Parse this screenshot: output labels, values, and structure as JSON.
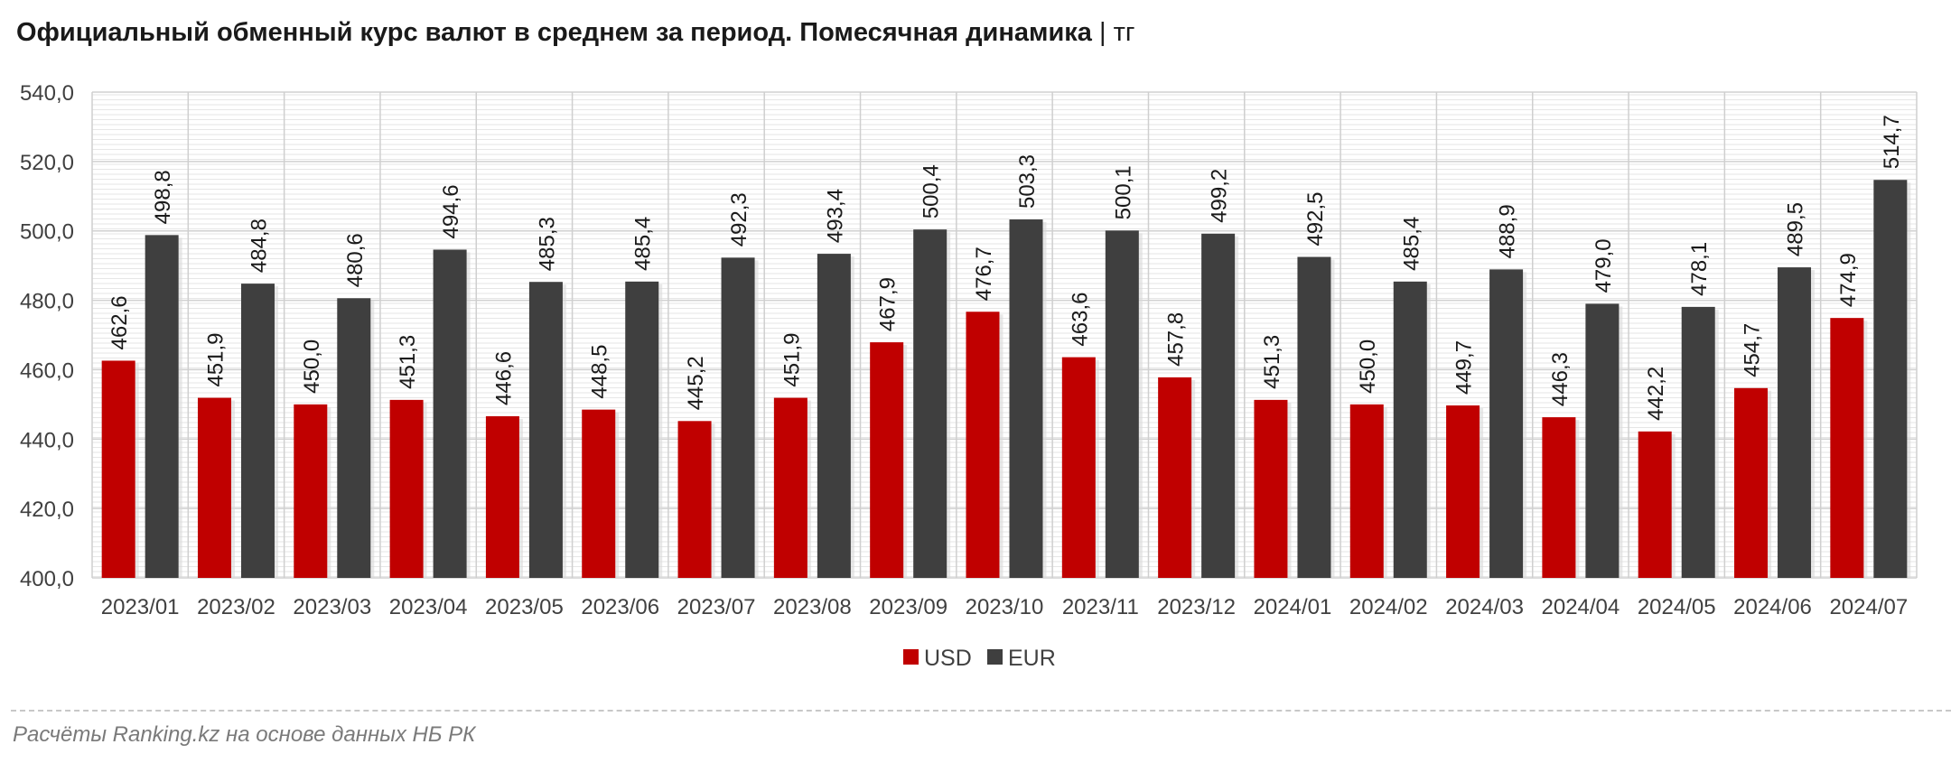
{
  "title": "Официальный обменный курс валют в среднем за период. Помесячная динамика",
  "title_unit": "| тг",
  "source": "Расчёты Ranking.kz на основе данных НБ РК",
  "chart_data": {
    "type": "bar",
    "categories": [
      "2023/01",
      "2023/02",
      "2023/03",
      "2023/04",
      "2023/05",
      "2023/06",
      "2023/07",
      "2023/08",
      "2023/09",
      "2023/10",
      "2023/11",
      "2023/12",
      "2024/01",
      "2024/02",
      "2024/03",
      "2024/04",
      "2024/05",
      "2024/06",
      "2024/07"
    ],
    "series": [
      {
        "name": "USD",
        "color": "#c00000",
        "values": [
          462.6,
          451.9,
          450.0,
          451.3,
          446.6,
          448.5,
          445.2,
          451.9,
          467.9,
          476.7,
          463.6,
          457.8,
          451.3,
          450.0,
          449.7,
          446.3,
          442.2,
          454.7,
          474.9
        ],
        "labels": [
          "462,6",
          "451,9",
          "450,0",
          "451,3",
          "446,6",
          "448,5",
          "445,2",
          "451,9",
          "467,9",
          "476,7",
          "463,6",
          "457,8",
          "451,3",
          "450,0",
          "449,7",
          "446,3",
          "442,2",
          "454,7",
          "474,9"
        ]
      },
      {
        "name": "EUR",
        "color": "#3f3f3f",
        "values": [
          498.8,
          484.8,
          480.6,
          494.6,
          485.3,
          485.4,
          492.3,
          493.4,
          500.4,
          503.3,
          500.1,
          499.2,
          492.5,
          485.4,
          488.9,
          479.0,
          478.1,
          489.5,
          514.7
        ],
        "labels": [
          "498,8",
          "484,8",
          "480,6",
          "494,6",
          "485,3",
          "485,4",
          "492,3",
          "493,4",
          "500,4",
          "503,3",
          "500,1",
          "499,2",
          "492,5",
          "485,4",
          "488,9",
          "479,0",
          "478,1",
          "489,5",
          "514,7"
        ]
      }
    ],
    "ylim": [
      400,
      540
    ],
    "yticks": [
      400,
      420,
      440,
      460,
      480,
      500,
      520,
      540
    ],
    "ytick_labels": [
      "400,0",
      "420,0",
      "440,0",
      "460,0",
      "480,0",
      "500,0",
      "520,0",
      "540,0"
    ],
    "grid": true,
    "legend": "bottom-center"
  }
}
